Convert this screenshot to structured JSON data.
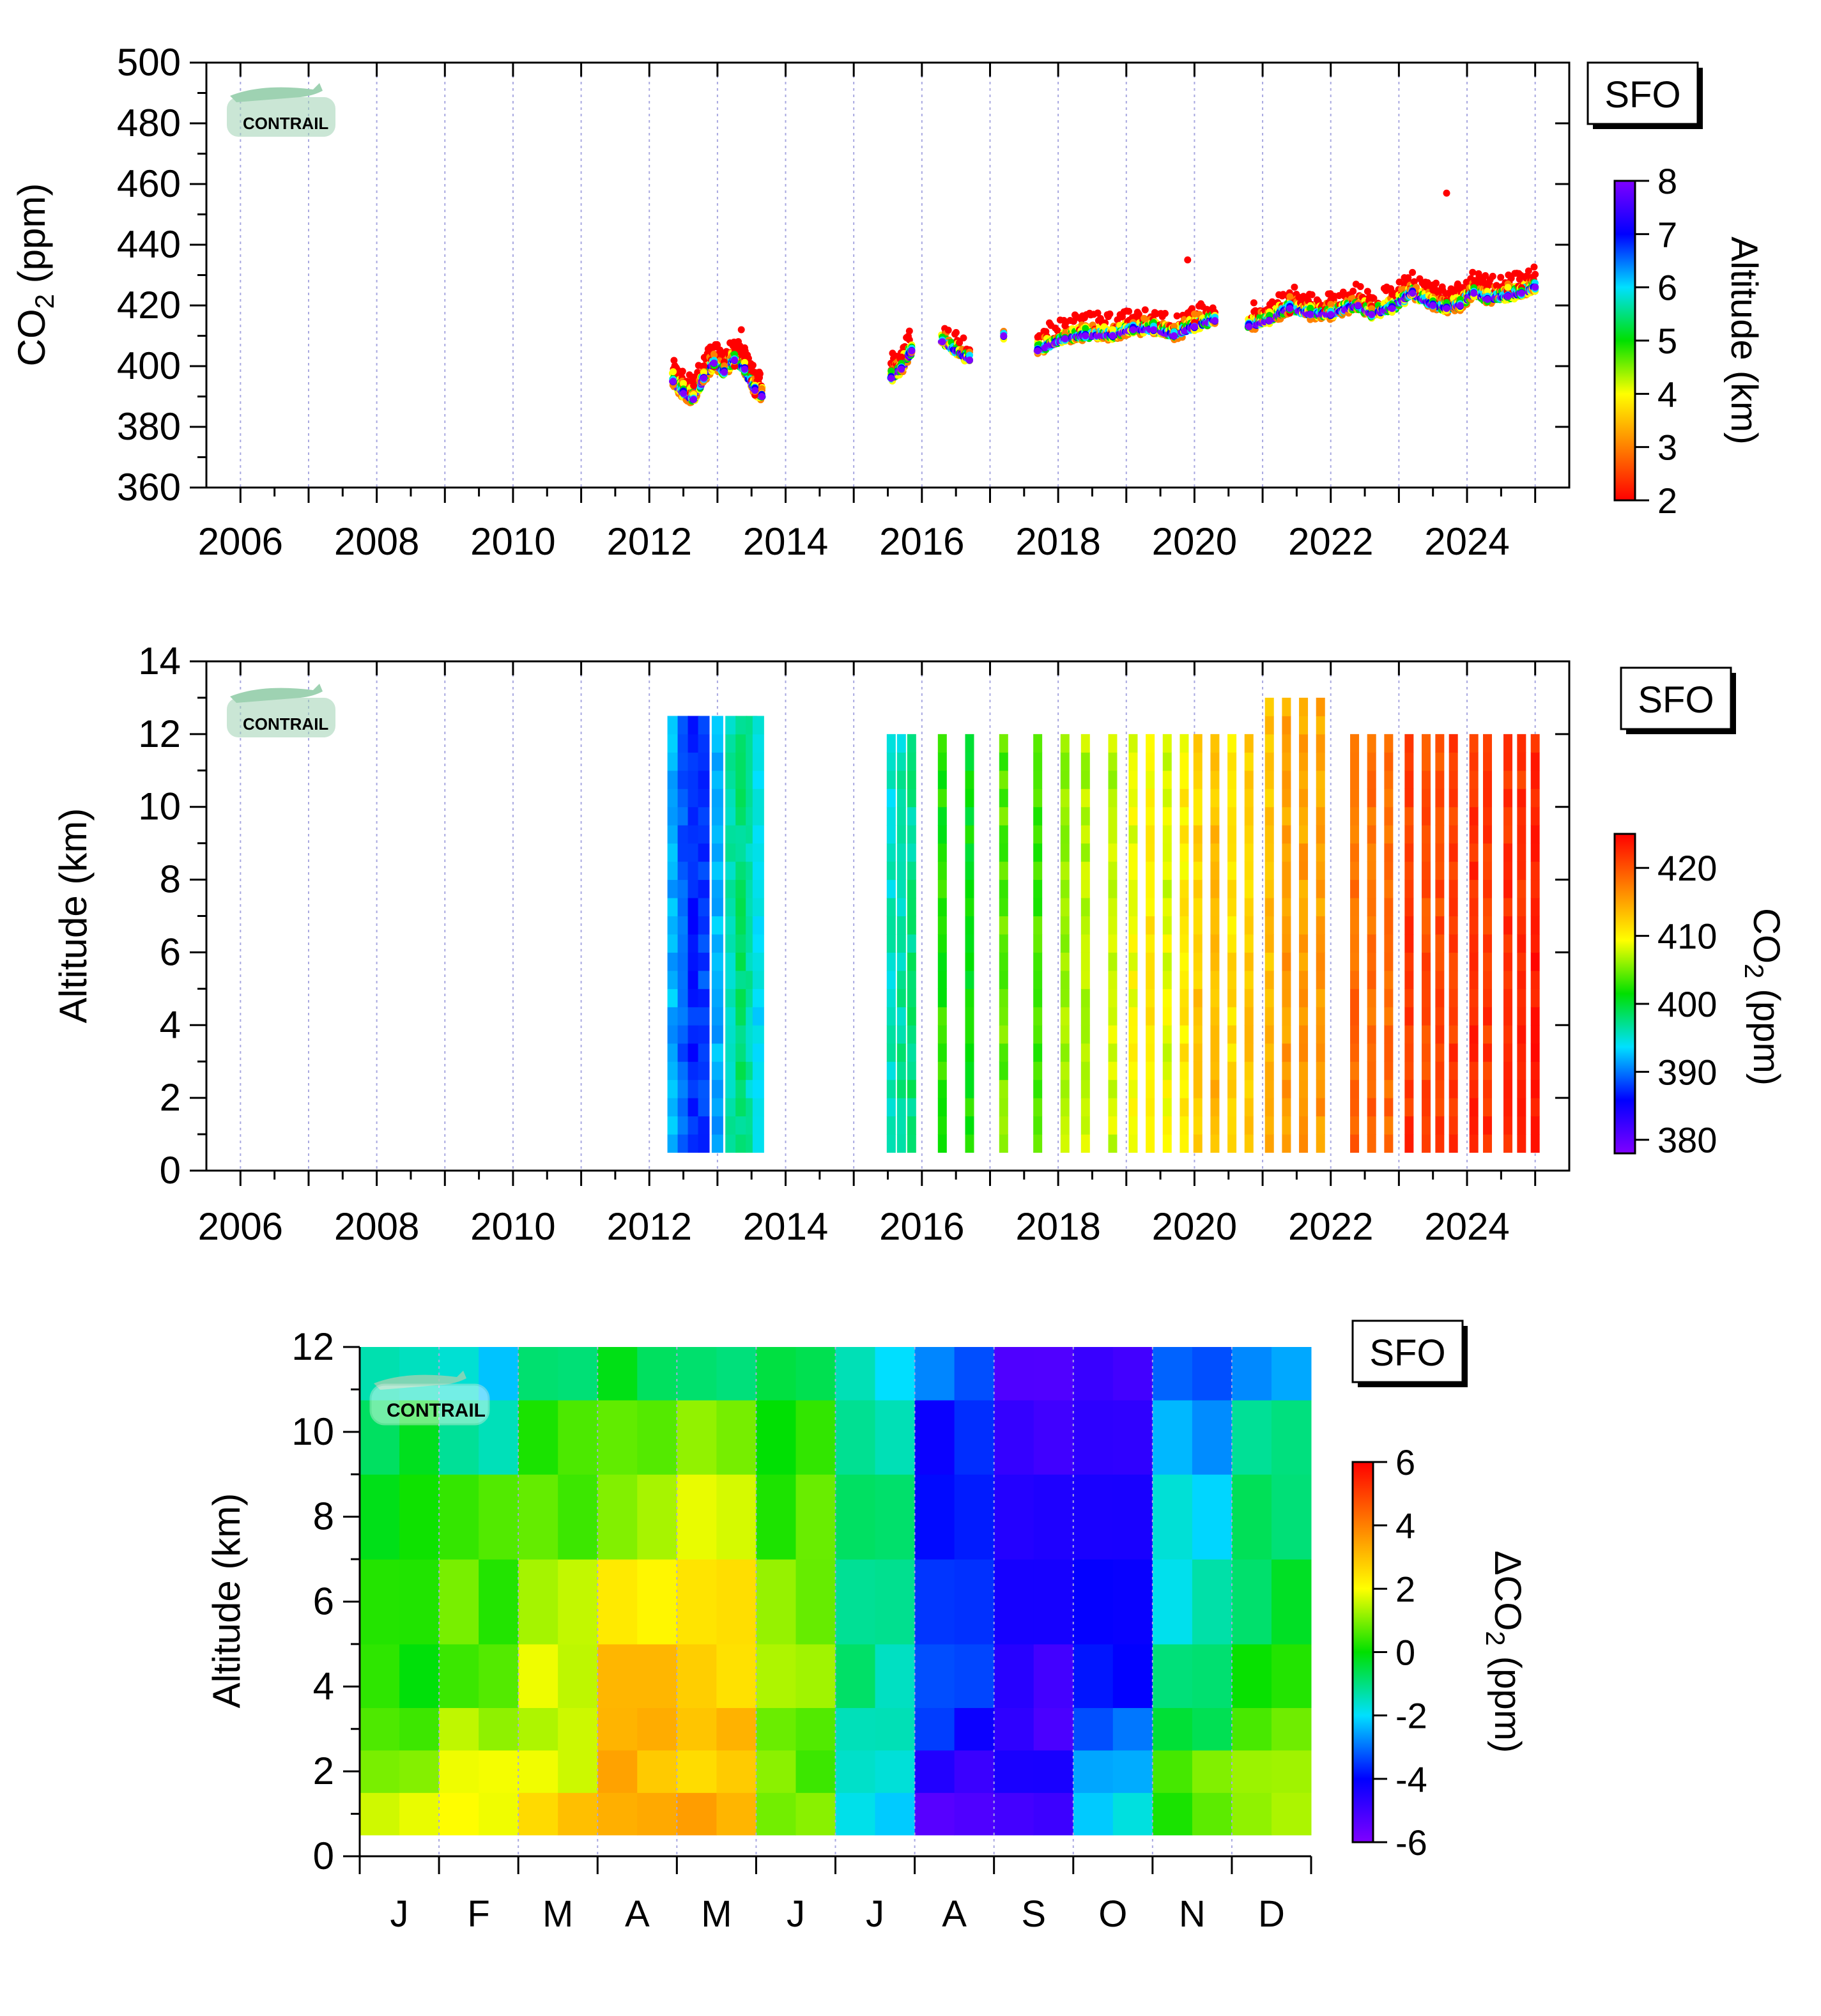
{
  "station_label": "SFO",
  "logo_text": "CONTRAIL",
  "chart_data": [
    {
      "type": "scatter",
      "ylabel": "CO2 (ppm)",
      "ylim": [
        360,
        500
      ],
      "xlim": [
        2005.5,
        2025.5
      ],
      "x_ticks": [
        "2006",
        "2008",
        "2010",
        "2012",
        "2014",
        "2016",
        "2018",
        "2020",
        "2022",
        "2024"
      ],
      "y_ticks": [
        "360",
        "380",
        "400",
        "420",
        "440",
        "460",
        "480",
        "500"
      ],
      "colorbar": {
        "label": "Altitude (km)",
        "range": [
          2,
          8
        ],
        "ticks": [
          "2",
          "3",
          "4",
          "5",
          "6",
          "7",
          "8"
        ],
        "colors": [
          "#ff0000",
          "#ff8000",
          "#ffff00",
          "#00e000",
          "#00e0ff",
          "#0000ff",
          "#8000ff"
        ]
      },
      "series": [
        {
          "x": [
            2012.35,
            2012.5,
            2012.65,
            2012.8,
            2012.95,
            2013.1,
            2013.25,
            2013.4,
            2013.55,
            2013.65
          ],
          "y": [
            395,
            391,
            389,
            396,
            401,
            398,
            402,
            399,
            392,
            390
          ]
        },
        {
          "x": [
            2015.55,
            2015.7,
            2015.85,
            2016.3,
            2016.7,
            2017.2,
            2017.7,
            2018.1,
            2018.4,
            2018.8,
            2019.1,
            2019.4,
            2019.7,
            2020.0,
            2020.3,
            2020.8,
            2021.1,
            2021.4,
            2021.7,
            2022.0,
            2022.4,
            2022.6,
            2022.9,
            2023.2,
            2023.5,
            2023.7,
            2023.9,
            2024.1,
            2024.3,
            2024.6,
            2024.8,
            2025.0
          ],
          "y": [
            396,
            399,
            405,
            408,
            402,
            410,
            405,
            409,
            410,
            410,
            412,
            412,
            410,
            413,
            415,
            413,
            415,
            419,
            417,
            417,
            420,
            417,
            419,
            424,
            420,
            419,
            420,
            424,
            422,
            423,
            424,
            426
          ]
        }
      ],
      "outliers": [
        {
          "x": 2023.7,
          "y": 457
        },
        {
          "x": 2019.9,
          "y": 435
        },
        {
          "x": 2013.35,
          "y": 412
        }
      ]
    },
    {
      "type": "heatmap",
      "ylabel": "Altitude (km)",
      "ylim": [
        0,
        14
      ],
      "xlim": [
        2005.5,
        2025.5
      ],
      "x_ticks": [
        "2006",
        "2008",
        "2010",
        "2012",
        "2014",
        "2016",
        "2018",
        "2020",
        "2022",
        "2024"
      ],
      "y_ticks": [
        "0",
        "2",
        "4",
        "6",
        "8",
        "10",
        "12",
        "14"
      ],
      "colorbar": {
        "label": "CO2 (ppm)",
        "range": [
          378,
          425
        ],
        "ticks": [
          "380",
          "390",
          "400",
          "410",
          "420"
        ],
        "colors": [
          "#8000ff",
          "#0000ff",
          "#00e0ff",
          "#00e000",
          "#ffff00",
          "#ff8000",
          "#ff0000"
        ]
      },
      "columns": [
        {
          "x": 2012.35,
          "v": 392
        },
        {
          "x": 2012.5,
          "v": 389
        },
        {
          "x": 2012.65,
          "v": 387
        },
        {
          "x": 2012.8,
          "v": 388
        },
        {
          "x": 2013.0,
          "v": 392
        },
        {
          "x": 2013.2,
          "v": 396
        },
        {
          "x": 2013.35,
          "v": 398
        },
        {
          "x": 2013.5,
          "v": 396
        },
        {
          "x": 2013.6,
          "v": 394
        },
        {
          "x": 2015.55,
          "v": 396
        },
        {
          "x": 2015.7,
          "v": 397
        },
        {
          "x": 2015.85,
          "v": 398
        },
        {
          "x": 2016.3,
          "v": 403
        },
        {
          "x": 2016.7,
          "v": 402
        },
        {
          "x": 2017.2,
          "v": 405
        },
        {
          "x": 2017.7,
          "v": 404
        },
        {
          "x": 2018.1,
          "v": 407
        },
        {
          "x": 2018.4,
          "v": 408
        },
        {
          "x": 2018.8,
          "v": 408
        },
        {
          "x": 2019.1,
          "v": 410
        },
        {
          "x": 2019.35,
          "v": 411
        },
        {
          "x": 2019.6,
          "v": 409
        },
        {
          "x": 2019.85,
          "v": 411
        },
        {
          "x": 2020.05,
          "v": 413
        },
        {
          "x": 2020.3,
          "v": 414
        },
        {
          "x": 2020.55,
          "v": 412
        },
        {
          "x": 2020.8,
          "v": 413
        },
        {
          "x": 2021.1,
          "v": 414
        },
        {
          "x": 2021.35,
          "v": 416
        },
        {
          "x": 2021.6,
          "v": 416
        },
        {
          "x": 2021.85,
          "v": 416
        },
        {
          "x": 2022.35,
          "v": 419
        },
        {
          "x": 2022.6,
          "v": 419
        },
        {
          "x": 2022.85,
          "v": 419
        },
        {
          "x": 2023.15,
          "v": 422
        },
        {
          "x": 2023.4,
          "v": 421
        },
        {
          "x": 2023.6,
          "v": 421
        },
        {
          "x": 2023.8,
          "v": 422
        },
        {
          "x": 2024.1,
          "v": 423
        },
        {
          "x": 2024.3,
          "v": 422
        },
        {
          "x": 2024.6,
          "v": 423
        },
        {
          "x": 2024.8,
          "v": 423
        },
        {
          "x": 2025.0,
          "v": 424
        }
      ]
    },
    {
      "type": "heatmap",
      "ylabel": "Altitude (km)",
      "ylim": [
        0,
        12
      ],
      "categories": [
        "J",
        "F",
        "M",
        "A",
        "M",
        "J",
        "J",
        "A",
        "S",
        "O",
        "N",
        "D"
      ],
      "y_ticks": [
        "0",
        "2",
        "4",
        "6",
        "8",
        "10",
        "12"
      ],
      "colorbar": {
        "label": "ΔCO2 (ppm)",
        "range": [
          -6,
          6
        ],
        "ticks": [
          "-6",
          "-4",
          "-2",
          "0",
          "2",
          "4",
          "6"
        ],
        "colors": [
          "#8000ff",
          "#0000ff",
          "#00e0ff",
          "#00e000",
          "#ffff00",
          "#ff8000",
          "#ff0000"
        ]
      },
      "altitude_bins": [
        1,
        2,
        3,
        4,
        6,
        8,
        10,
        11.5
      ],
      "values": [
        [
          1.5,
          2.2,
          2.8,
          3.5,
          3.3,
          0.8,
          -2.2,
          -5.2,
          -5.0,
          -2.0,
          0.5,
          1.5
        ],
        [
          1.0,
          1.8,
          1.7,
          3.2,
          2.9,
          0.8,
          -1.8,
          -4.8,
          -4.6,
          -2.6,
          0.7,
          1.0
        ],
        [
          0.5,
          1.3,
          1.6,
          3.4,
          2.9,
          0.9,
          -1.6,
          -3.8,
          -4.9,
          -3.2,
          -0.3,
          0.6
        ],
        [
          0.3,
          0.8,
          1.5,
          3.0,
          2.8,
          1.3,
          -1.2,
          -3.6,
          -4.7,
          -4.1,
          -1.0,
          0.1
        ],
        [
          0.2,
          0.6,
          1.4,
          2.3,
          2.6,
          1.0,
          -0.8,
          -3.9,
          -4.6,
          -4.0,
          -1.7,
          -0.5
        ],
        [
          0.2,
          0.3,
          0.6,
          1.3,
          2.0,
          0.5,
          -0.5,
          -4.0,
          -4.7,
          -4.3,
          -2.0,
          -0.8
        ],
        [
          -0.5,
          -1.2,
          0.3,
          0.5,
          0.9,
          0.2,
          -1.3,
          -3.8,
          -4.8,
          -4.4,
          -2.5,
          -1.2
        ],
        [
          -1.3,
          -2.0,
          -1.0,
          -0.5,
          -0.6,
          -0.3,
          -1.8,
          -3.0,
          -5.3,
          -5.2,
          -3.5,
          -2.4
        ]
      ]
    }
  ]
}
